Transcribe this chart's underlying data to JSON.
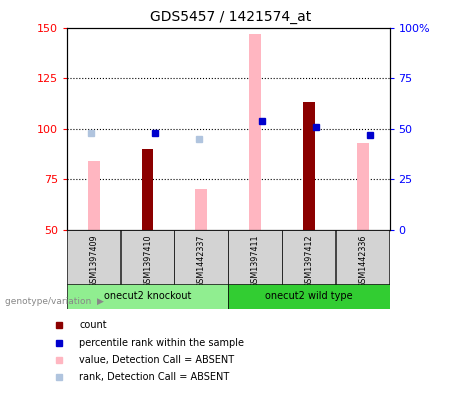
{
  "title": "GDS5457 / 1421574_at",
  "samples": [
    "GSM1397409",
    "GSM1397410",
    "GSM1442337",
    "GSM1397411",
    "GSM1397412",
    "GSM1442336"
  ],
  "group_labels": [
    "onecut2 knockout",
    "onecut2 wild type"
  ],
  "count_values": [
    null,
    90,
    null,
    null,
    113,
    null
  ],
  "percentile_values": [
    null,
    48,
    null,
    54,
    51,
    47
  ],
  "value_absent": [
    84,
    null,
    70,
    147,
    null,
    93
  ],
  "rank_absent": [
    48,
    null,
    45,
    null,
    null,
    null
  ],
  "ylim_left": [
    50,
    150
  ],
  "ylim_right": [
    0,
    100
  ],
  "yticks_left": [
    50,
    75,
    100,
    125,
    150
  ],
  "yticks_right": [
    0,
    25,
    50,
    75,
    100
  ],
  "ytick_labels_left": [
    "50",
    "75",
    "100",
    "125",
    "150"
  ],
  "ytick_labels_right": [
    "0",
    "25",
    "50",
    "75",
    "100%"
  ],
  "grid_lines": [
    75,
    100,
    125
  ],
  "color_count": "#8B0000",
  "color_percentile": "#0000CD",
  "color_value_absent": "#FFB6C1",
  "color_rank_absent": "#B0C4DE",
  "color_group1": "#90EE90",
  "color_group2": "#32CD32",
  "legend_label_count": "count",
  "legend_label_percentile": "percentile rank within the sample",
  "legend_label_value_absent": "value, Detection Call = ABSENT",
  "legend_label_rank_absent": "rank, Detection Call = ABSENT",
  "genotype_label": "genotype/variation"
}
